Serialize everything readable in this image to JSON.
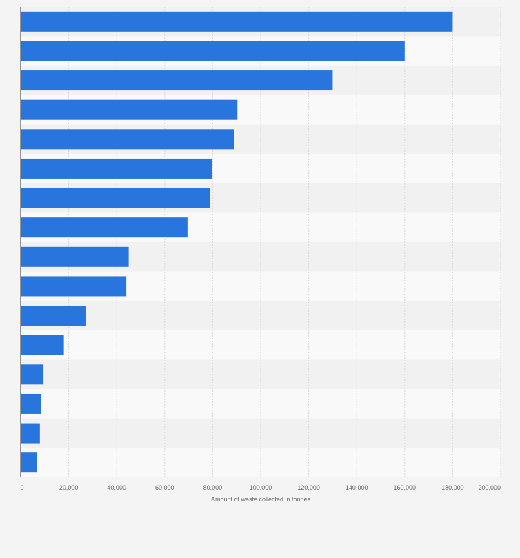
{
  "chart_data": {
    "type": "bar",
    "orientation": "horizontal",
    "categories": [
      "",
      "",
      "",
      "",
      "",
      "",
      "",
      "",
      "",
      "",
      "",
      "",
      "",
      "",
      "",
      ""
    ],
    "values": [
      180000,
      160000,
      130000,
      90300,
      89000,
      79700,
      79000,
      69500,
      45000,
      44000,
      27000,
      18000,
      9500,
      8500,
      8000,
      6800
    ],
    "xlabel": "Amount of waste collected in tonnes",
    "ylabel": "",
    "xlim": [
      0,
      200000
    ],
    "x_ticks": [
      0,
      20000,
      40000,
      60000,
      80000,
      100000,
      120000,
      140000,
      160000,
      180000,
      200000
    ],
    "x_tick_labels": [
      "0",
      "20,000",
      "40,000",
      "60,000",
      "80,000",
      "100,000",
      "120,000",
      "140,000",
      "160,000",
      "180,000",
      "200,000"
    ],
    "grid": true,
    "legend": "none",
    "colors": {
      "bar": "#2876dd",
      "band_light": "#f9f9f9",
      "band_dark": "#f1f1f1",
      "grid": "#d8d8d8",
      "axis": "#333333",
      "text": "#666666",
      "background": "#f4f4f4"
    }
  }
}
